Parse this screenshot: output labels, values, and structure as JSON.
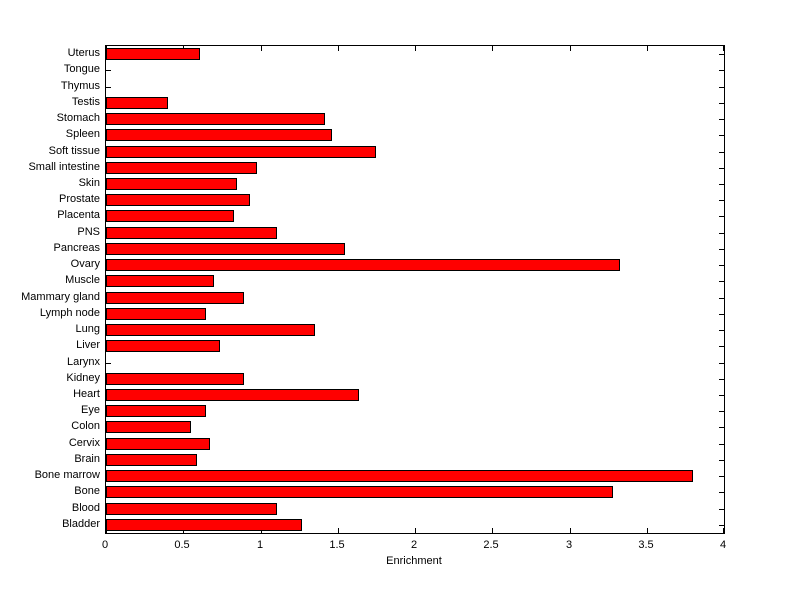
{
  "figure": {
    "background": "#ffffff",
    "axis_color": "#000000"
  },
  "chart_data": {
    "type": "bar",
    "orientation": "horizontal",
    "title": "",
    "xlabel": "Enrichment",
    "ylabel": "",
    "xlim": [
      0,
      4
    ],
    "xticks": [
      0,
      0.5,
      1,
      1.5,
      2,
      2.5,
      3,
      3.5,
      4
    ],
    "xtick_labels": [
      "0",
      "0.5",
      "1",
      "1.5",
      "2",
      "2.5",
      "3",
      "3.5",
      "4"
    ],
    "grid": false,
    "legend": "none",
    "bar_color": "#ff0000",
    "bar_edge_color": "#000000",
    "categories": [
      "Uterus",
      "Tongue",
      "Thymus",
      "Testis",
      "Stomach",
      "Spleen",
      "Soft tissue",
      "Small intestine",
      "Skin",
      "Prostate",
      "Placenta",
      "PNS",
      "Pancreas",
      "Ovary",
      "Muscle",
      "Mammary gland",
      "Lymph node",
      "Lung",
      "Liver",
      "Larynx",
      "Kidney",
      "Heart",
      "Eye",
      "Colon",
      "Cervix",
      "Brain",
      "Bone marrow",
      "Bone",
      "Blood",
      "Bladder"
    ],
    "values": [
      0.61,
      0,
      0,
      0.4,
      1.42,
      1.46,
      1.75,
      0.98,
      0.85,
      0.93,
      0.83,
      1.11,
      1.55,
      3.33,
      0.7,
      0.89,
      0.65,
      1.35,
      0.74,
      0,
      0.89,
      1.64,
      0.65,
      0.55,
      0.67,
      0.59,
      3.8,
      3.28,
      1.11,
      1.27
    ]
  }
}
